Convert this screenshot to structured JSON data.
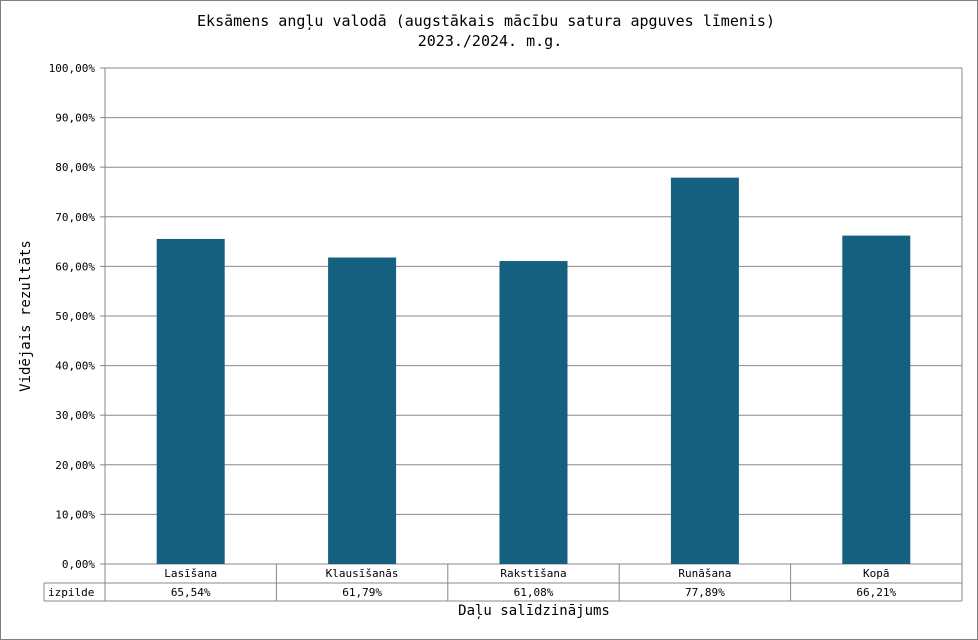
{
  "chart_data": {
    "type": "bar",
    "title": "Eksāmens angļu valodā (augstākais mācību satura apguves līmenis)",
    "subtitle": "2023./2024. m.g.",
    "xlabel": "Daļu salīdzinājums",
    "ylabel": "Vidējais rezultāts",
    "ylim": [
      0,
      100
    ],
    "yticks": [
      "0,00%",
      "10,00%",
      "20,00%",
      "30,00%",
      "40,00%",
      "50,00%",
      "60,00%",
      "70,00%",
      "80,00%",
      "90,00%",
      "100,00%"
    ],
    "categories": [
      "Lasīšana",
      "Klausīšanās",
      "Rakstīšana",
      "Runāšana",
      "Kopā"
    ],
    "series": [
      {
        "name": "izpilde",
        "values": [
          65.54,
          61.79,
          61.08,
          77.89,
          66.21
        ],
        "labels": [
          "65,54%",
          "61,79%",
          "61,08%",
          "77,89%",
          "66,21%"
        ]
      }
    ],
    "bar_color": "#16607f",
    "grid": true,
    "legend": "data-table-bottom"
  }
}
